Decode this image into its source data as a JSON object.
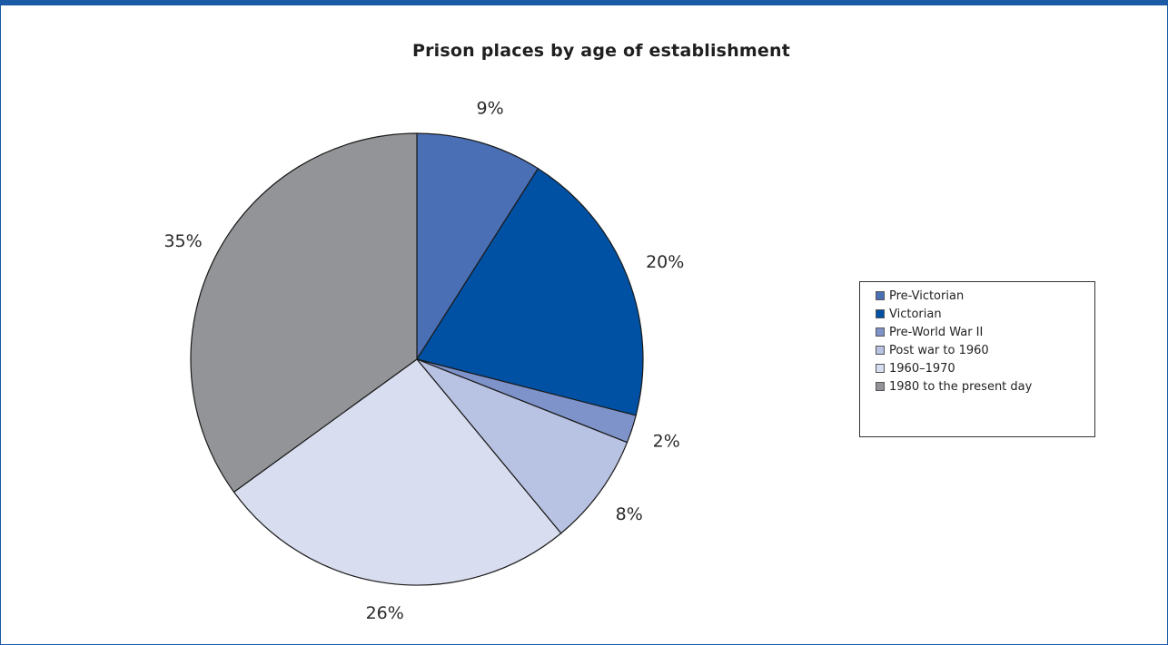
{
  "chart_data": {
    "type": "pie",
    "title": "Prison places by age of establishment",
    "legend_position": "right",
    "categories": [
      "Pre-Victorian",
      "Victorian",
      "Pre-World War II",
      "Post war to 1960",
      "1960–1970",
      "1980 to the present day"
    ],
    "values": [
      9,
      20,
      2,
      8,
      26,
      35
    ],
    "labels": [
      "9%",
      "20%",
      "2%",
      "8%",
      "26%",
      "35%"
    ],
    "colors": [
      "#4a6fb5",
      "#0051a3",
      "#7f93cb",
      "#b8c2e2",
      "#d8ddef",
      "#929497"
    ]
  }
}
